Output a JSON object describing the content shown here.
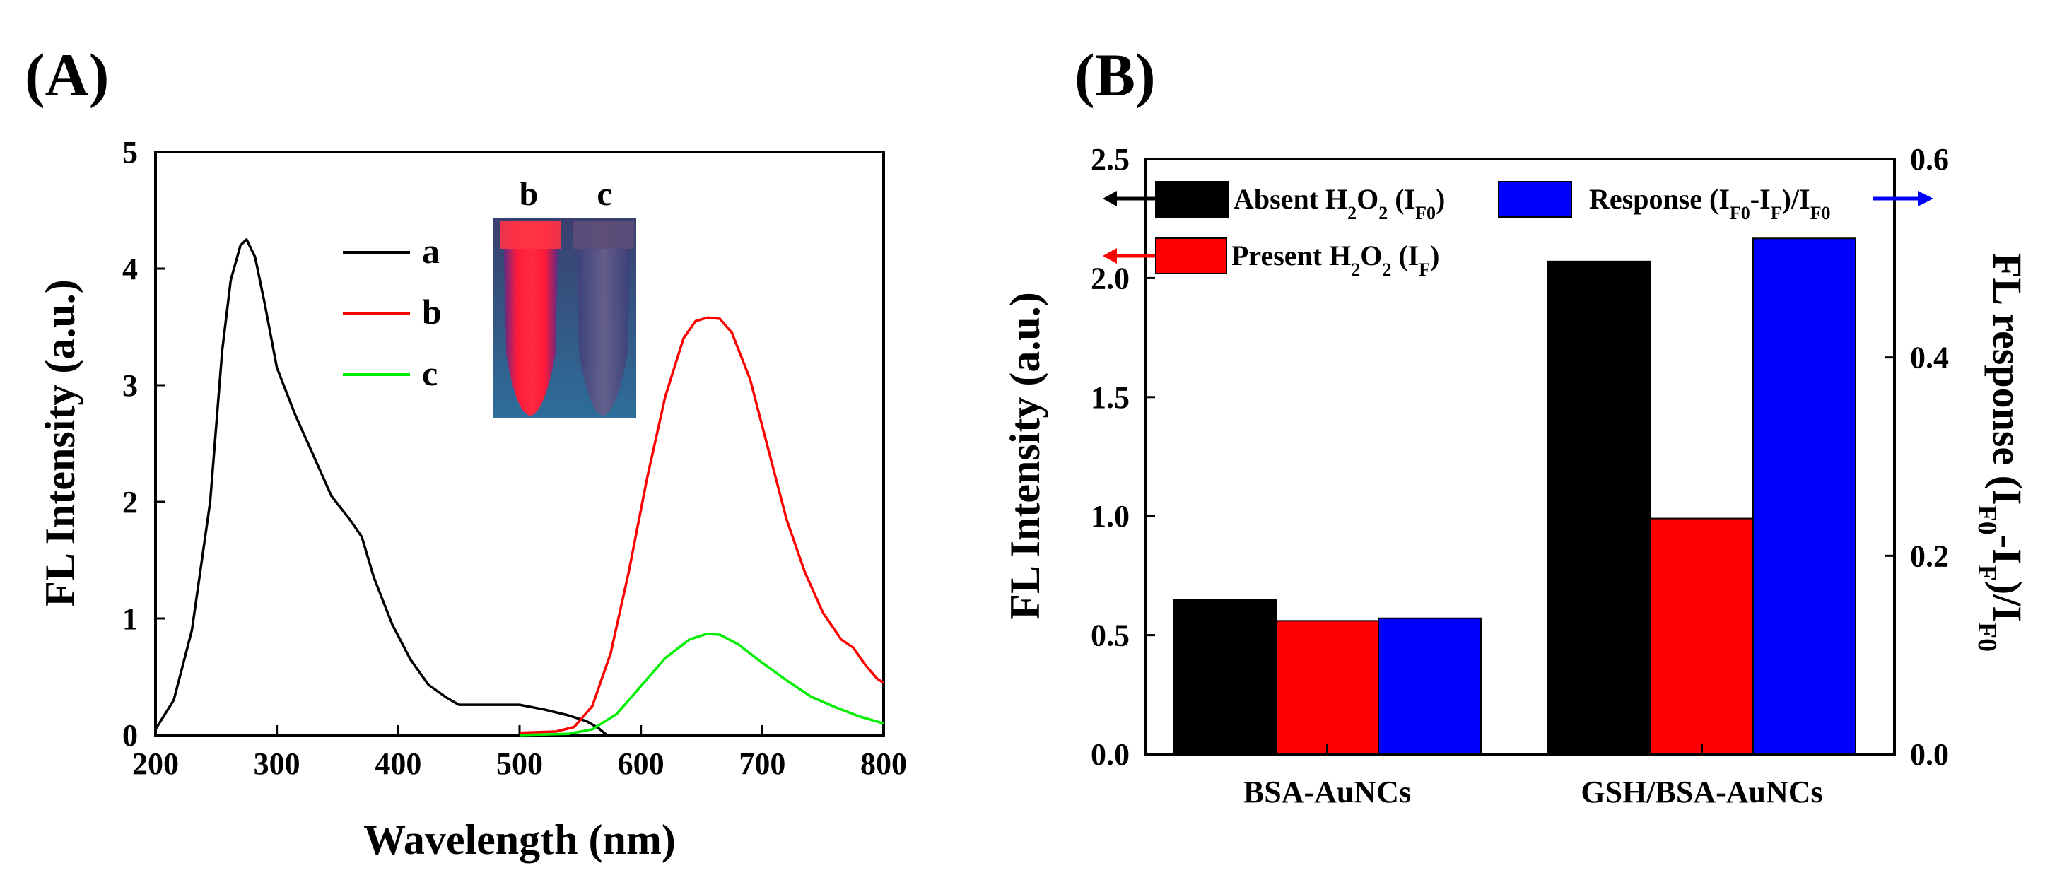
{
  "figure": {
    "panel_a_label": "(A)",
    "panel_b_label": "(B)"
  },
  "chart_data": [
    {
      "type": "line",
      "panel": "(A)",
      "xlabel": "Wavelength (nm)",
      "ylabel": "FL Intensity (a.u.)",
      "xlim": [
        200,
        800
      ],
      "ylim": [
        0,
        5
      ],
      "xticks": [
        "200",
        "300",
        "400",
        "500",
        "600",
        "700",
        "800"
      ],
      "yticks": [
        "0",
        "1",
        "2",
        "3",
        "4",
        "5"
      ],
      "legend": {
        "position": "top-center",
        "entries": [
          "a",
          "b",
          "c"
        ]
      },
      "inset": {
        "labels": [
          "b",
          "c"
        ]
      },
      "series": [
        {
          "name": "a",
          "color": "#000000",
          "x": [
            200,
            215,
            230,
            245,
            255,
            262,
            270,
            275,
            282,
            290,
            300,
            315,
            330,
            345,
            360,
            370,
            380,
            395,
            410,
            425,
            440,
            450,
            470,
            500,
            520,
            540,
            555,
            565,
            572
          ],
          "y": [
            0.05,
            0.3,
            0.9,
            2.0,
            3.3,
            3.9,
            4.2,
            4.25,
            4.1,
            3.7,
            3.15,
            2.75,
            2.4,
            2.05,
            1.85,
            1.7,
            1.35,
            0.95,
            0.65,
            0.43,
            0.32,
            0.26,
            0.26,
            0.26,
            0.22,
            0.17,
            0.12,
            0.06,
            0.0
          ]
        },
        {
          "name": "b",
          "color": "#ff0000",
          "x": [
            500,
            530,
            545,
            560,
            575,
            590,
            605,
            620,
            635,
            645,
            655,
            665,
            675,
            690,
            705,
            720,
            735,
            750,
            765,
            775,
            785,
            795,
            800
          ],
          "y": [
            0.02,
            0.03,
            0.07,
            0.25,
            0.7,
            1.4,
            2.2,
            2.9,
            3.4,
            3.55,
            3.58,
            3.57,
            3.45,
            3.05,
            2.45,
            1.85,
            1.4,
            1.05,
            0.82,
            0.75,
            0.6,
            0.48,
            0.45
          ]
        },
        {
          "name": "c",
          "color": "#00ee00",
          "x": [
            500,
            540,
            560,
            580,
            600,
            620,
            640,
            655,
            665,
            680,
            700,
            720,
            740,
            760,
            780,
            800
          ],
          "y": [
            0.0,
            0.01,
            0.05,
            0.18,
            0.42,
            0.66,
            0.82,
            0.87,
            0.86,
            0.78,
            0.62,
            0.47,
            0.33,
            0.24,
            0.16,
            0.1
          ]
        }
      ]
    },
    {
      "type": "bar",
      "panel": "(B)",
      "categories": [
        "BSA-AuNCs",
        "GSH/BSA-AuNCs"
      ],
      "ylabel": "FL Intensity (a.u.)",
      "ylim": [
        0,
        2.5
      ],
      "yticks": [
        "0.0",
        "0.5",
        "1.0",
        "1.5",
        "2.0",
        "2.5"
      ],
      "y2label": "FL response (I",
      "y2label_sub1": "F0",
      "y2label_mid": "-I",
      "y2label_sub2": "F",
      "y2label_mid2": ")/I",
      "y2label_sub3": "F0",
      "y2label_end": "",
      "y2lim": [
        0,
        0.6
      ],
      "y2ticks": [
        "0.0",
        "0.2",
        "0.4",
        "0.6"
      ],
      "series": [
        {
          "name": "Absent H2O2 (IF0)",
          "color": "#000000",
          "axis": "left",
          "values": [
            0.65,
            2.07
          ]
        },
        {
          "name": "Present H2O2 (IF)",
          "color": "#ff0000",
          "axis": "left",
          "values": [
            0.56,
            0.99
          ]
        },
        {
          "name": "Response (IF0-IF)/IF0",
          "color": "#0000ff",
          "axis": "right",
          "values": [
            0.137,
            0.52
          ]
        }
      ],
      "legend": [
        {
          "pre": "Absent H",
          "s1": "2",
          "mid": "O",
          "s2": "2",
          "post": " (I",
          "s3": "F0",
          "end": ")"
        },
        {
          "pre": "Present H",
          "s1": "2",
          "mid": "O",
          "s2": "2",
          "post": " (I",
          "s3": "F",
          "end": ")"
        },
        {
          "pre": "Response (I",
          "s1": "F0",
          "mid": "-I",
          "s2": "F",
          "post": ")/I",
          "s3": "F0",
          "end": ""
        }
      ]
    }
  ]
}
